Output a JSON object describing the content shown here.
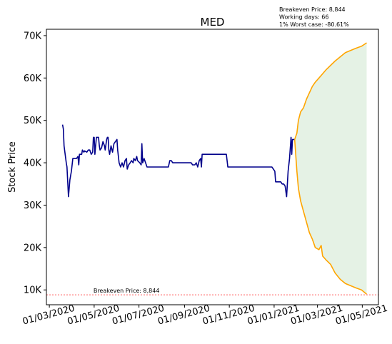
{
  "chart_data": {
    "type": "line",
    "title": "MED",
    "ylabel": "Stock Price",
    "xlabel": "",
    "x_axis": "date",
    "xlim": [
      "2020-02-26",
      "2021-05-23"
    ],
    "ylim": [
      6500,
      71500
    ],
    "yticks": [
      10000,
      20000,
      30000,
      40000,
      50000,
      60000,
      70000
    ],
    "ytick_labels": [
      "10K",
      "20K",
      "30K",
      "40K",
      "50K",
      "60K",
      "70K"
    ],
    "xticks": [
      "2020-03-01",
      "2020-05-01",
      "2020-07-01",
      "2020-09-01",
      "2020-11-01",
      "2021-01-01",
      "2021-03-01",
      "2021-05-01"
    ],
    "xtick_labels": [
      "01/03/2020",
      "01/05/2020",
      "01/07/2020",
      "01/09/2020",
      "01/11/2020",
      "01/01/2021",
      "01/03/2021",
      "01/05/2021"
    ],
    "grid": false,
    "colors": {
      "history": "#00008b",
      "projection": "#ffa500",
      "band_fill": "#e5f2e5",
      "breakeven_line": "#ff0000"
    },
    "annotations": {
      "top_right": [
        "Breakeven Price: 8,844",
        "Working days: 66",
        "1% Worst case: -80.61%"
      ],
      "breakeven_label": "Breakeven Price: 8,844"
    },
    "breakeven_price": 8844,
    "series": [
      {
        "values": [
          [
            "2020-03-19",
            49000
          ],
          [
            "2020-03-20",
            48000
          ],
          [
            "2020-03-21",
            44000
          ],
          [
            "2020-03-24",
            40000
          ],
          [
            "2020-03-25",
            39000
          ],
          [
            "2020-03-27",
            32000
          ],
          [
            "2020-03-29",
            36000
          ],
          [
            "2020-03-31",
            38000
          ],
          [
            "2020-04-02",
            41000
          ],
          [
            "2020-04-05",
            41000
          ],
          [
            "2020-04-07",
            41000
          ],
          [
            "2020-04-09",
            41500
          ],
          [
            "2020-04-10",
            39500
          ],
          [
            "2020-04-11",
            42000
          ],
          [
            "2020-04-14",
            42000
          ],
          [
            "2020-04-15",
            43000
          ],
          [
            "2020-04-17",
            42500
          ],
          [
            "2020-04-18",
            42800
          ],
          [
            "2020-04-21",
            42500
          ],
          [
            "2020-04-23",
            43000
          ],
          [
            "2020-04-25",
            43000
          ],
          [
            "2020-04-27",
            42000
          ],
          [
            "2020-04-29",
            42500
          ],
          [
            "2020-04-30",
            46000
          ],
          [
            "2020-05-01",
            46000
          ],
          [
            "2020-05-02",
            42000
          ],
          [
            "2020-05-04",
            46000
          ],
          [
            "2020-05-05",
            46000
          ],
          [
            "2020-05-07",
            46000
          ],
          [
            "2020-05-08",
            44000
          ],
          [
            "2020-05-09",
            43000
          ],
          [
            "2020-05-11",
            43500
          ],
          [
            "2020-05-13",
            45000
          ],
          [
            "2020-05-15",
            44000
          ],
          [
            "2020-05-16",
            43000
          ],
          [
            "2020-05-18",
            45500
          ],
          [
            "2020-05-19",
            46000
          ],
          [
            "2020-05-20",
            46000
          ],
          [
            "2020-05-21",
            43000
          ],
          [
            "2020-05-22",
            42000
          ],
          [
            "2020-05-24",
            44000
          ],
          [
            "2020-05-26",
            42500
          ],
          [
            "2020-05-28",
            44500
          ],
          [
            "2020-05-30",
            45000
          ],
          [
            "2020-06-01",
            45500
          ],
          [
            "2020-06-02",
            43000
          ],
          [
            "2020-06-04",
            40000
          ],
          [
            "2020-06-06",
            39000
          ],
          [
            "2020-06-08",
            40000
          ],
          [
            "2020-06-10",
            39000
          ],
          [
            "2020-06-12",
            40500
          ],
          [
            "2020-06-14",
            41000
          ],
          [
            "2020-06-15",
            38500
          ],
          [
            "2020-06-17",
            39500
          ],
          [
            "2020-06-19",
            40000
          ],
          [
            "2020-06-21",
            40500
          ],
          [
            "2020-06-23",
            40000
          ],
          [
            "2020-06-24",
            41000
          ],
          [
            "2020-06-26",
            40500
          ],
          [
            "2020-06-28",
            41500
          ],
          [
            "2020-06-29",
            40500
          ],
          [
            "2020-07-02",
            40000
          ],
          [
            "2020-07-04",
            39500
          ],
          [
            "2020-07-05",
            44500
          ],
          [
            "2020-07-06",
            40000
          ],
          [
            "2020-07-08",
            41000
          ],
          [
            "2020-07-10",
            40000
          ],
          [
            "2020-07-12",
            39000
          ],
          [
            "2020-07-20",
            39000
          ],
          [
            "2020-07-30",
            39000
          ],
          [
            "2020-08-10",
            39000
          ],
          [
            "2020-08-12",
            40500
          ],
          [
            "2020-08-14",
            40500
          ],
          [
            "2020-08-16",
            40000
          ],
          [
            "2020-09-01",
            40000
          ],
          [
            "2020-09-10",
            40000
          ],
          [
            "2020-09-12",
            39500
          ],
          [
            "2020-09-15",
            39500
          ],
          [
            "2020-09-17",
            40000
          ],
          [
            "2020-09-19",
            39000
          ],
          [
            "2020-09-21",
            40500
          ],
          [
            "2020-09-23",
            41000
          ],
          [
            "2020-09-24",
            39000
          ],
          [
            "2020-09-25",
            42000
          ],
          [
            "2020-10-01",
            42000
          ],
          [
            "2020-10-15",
            42000
          ],
          [
            "2020-10-28",
            42000
          ],
          [
            "2020-10-30",
            39000
          ],
          [
            "2020-11-15",
            39000
          ],
          [
            "2020-12-01",
            39000
          ],
          [
            "2020-12-15",
            39000
          ],
          [
            "2020-12-29",
            39000
          ],
          [
            "2020-12-31",
            38500
          ],
          [
            "2021-01-02",
            38000
          ],
          [
            "2021-01-03",
            35500
          ],
          [
            "2021-01-06",
            35500
          ],
          [
            "2021-01-10",
            35500
          ],
          [
            "2021-01-12",
            35000
          ],
          [
            "2021-01-14",
            35000
          ],
          [
            "2021-01-16",
            34500
          ],
          [
            "2021-01-18",
            32000
          ],
          [
            "2021-01-20",
            38000
          ],
          [
            "2021-01-22",
            41000
          ],
          [
            "2021-01-24",
            46000
          ],
          [
            "2021-01-25",
            42000
          ],
          [
            "2021-01-26",
            45500
          ],
          [
            "2021-01-29",
            45500
          ]
        ]
      },
      {
        "values": [
          [
            "2021-01-29",
            45500
          ],
          [
            "2021-02-01",
            47000
          ],
          [
            "2021-02-03",
            50000
          ],
          [
            "2021-02-06",
            52000
          ],
          [
            "2021-02-10",
            53000
          ],
          [
            "2021-02-14",
            55000
          ],
          [
            "2021-02-18",
            56500
          ],
          [
            "2021-02-22",
            58000
          ],
          [
            "2021-02-26",
            59000
          ],
          [
            "2021-03-03",
            60000
          ],
          [
            "2021-03-08",
            61000
          ],
          [
            "2021-03-13",
            62000
          ],
          [
            "2021-03-19",
            63000
          ],
          [
            "2021-03-25",
            64000
          ],
          [
            "2021-04-01",
            65000
          ],
          [
            "2021-04-08",
            66000
          ],
          [
            "2021-04-15",
            66500
          ],
          [
            "2021-04-22",
            67000
          ],
          [
            "2021-04-30",
            67500
          ],
          [
            "2021-05-07",
            68300
          ]
        ]
      },
      {
        "values": [
          [
            "2021-01-29",
            45500
          ],
          [
            "2021-02-01",
            38000
          ],
          [
            "2021-02-03",
            34000
          ],
          [
            "2021-02-06",
            31000
          ],
          [
            "2021-02-10",
            28500
          ],
          [
            "2021-02-14",
            26000
          ],
          [
            "2021-02-18",
            23500
          ],
          [
            "2021-02-22",
            22000
          ],
          [
            "2021-02-26",
            20000
          ],
          [
            "2021-03-03",
            19500
          ],
          [
            "2021-03-06",
            20500
          ],
          [
            "2021-03-08",
            18000
          ],
          [
            "2021-03-13",
            17000
          ],
          [
            "2021-03-19",
            16000
          ],
          [
            "2021-03-25",
            14000
          ],
          [
            "2021-04-01",
            12500
          ],
          [
            "2021-04-08",
            11500
          ],
          [
            "2021-04-15",
            11000
          ],
          [
            "2021-04-22",
            10500
          ],
          [
            "2021-04-30",
            10000
          ],
          [
            "2021-05-07",
            9000
          ]
        ]
      }
    ]
  }
}
